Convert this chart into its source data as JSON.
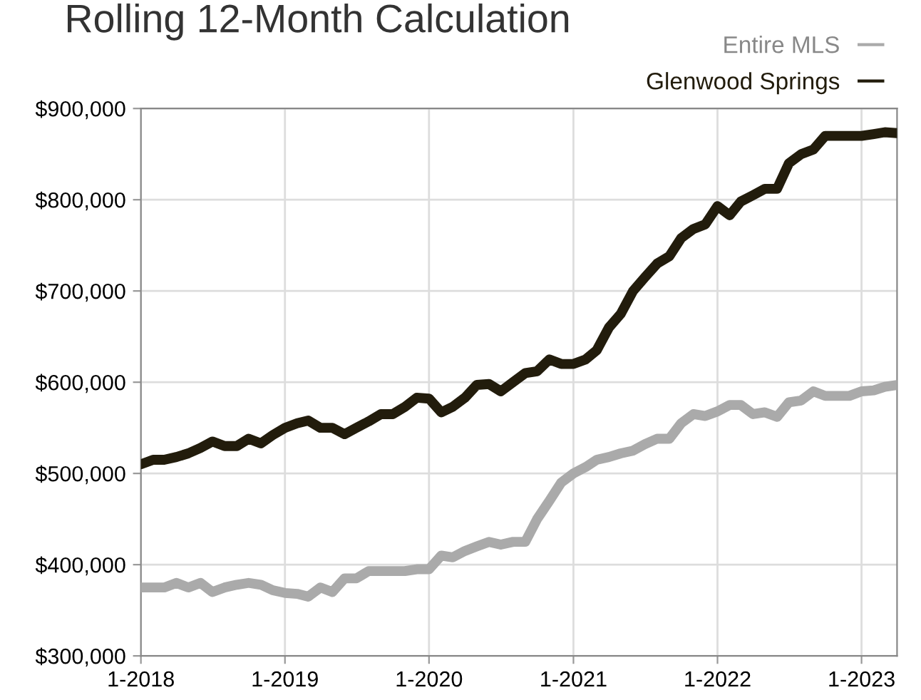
{
  "chart_data": {
    "type": "line",
    "title": "Rolling 12-Month Calculation",
    "x": [
      "2018-01",
      "2018-02",
      "2018-03",
      "2018-04",
      "2018-05",
      "2018-06",
      "2018-07",
      "2018-08",
      "2018-09",
      "2018-10",
      "2018-11",
      "2018-12",
      "2019-01",
      "2019-02",
      "2019-03",
      "2019-04",
      "2019-05",
      "2019-06",
      "2019-07",
      "2019-08",
      "2019-09",
      "2019-10",
      "2019-11",
      "2019-12",
      "2020-01",
      "2020-02",
      "2020-03",
      "2020-04",
      "2020-05",
      "2020-06",
      "2020-07",
      "2020-08",
      "2020-09",
      "2020-10",
      "2020-11",
      "2020-12",
      "2021-01",
      "2021-02",
      "2021-03",
      "2021-04",
      "2021-05",
      "2021-06",
      "2021-07",
      "2021-08",
      "2021-09",
      "2021-10",
      "2021-11",
      "2021-12",
      "2022-01",
      "2022-02",
      "2022-03",
      "2022-04",
      "2022-05",
      "2022-06",
      "2022-07",
      "2022-08",
      "2022-09",
      "2022-10",
      "2022-11",
      "2022-12",
      "2023-01",
      "2023-02",
      "2023-03",
      "2023-04"
    ],
    "series": [
      {
        "name": "Entire MLS",
        "color": "#aaaaaa",
        "values": [
          375000,
          375000,
          375000,
          380000,
          375000,
          380000,
          370000,
          375000,
          378000,
          380000,
          378000,
          372000,
          369000,
          368000,
          365000,
          375000,
          370000,
          385000,
          385000,
          393000,
          393000,
          393000,
          393000,
          395000,
          395000,
          410000,
          408000,
          415000,
          420000,
          425000,
          422000,
          425000,
          425000,
          450000,
          470000,
          490000,
          500000,
          507000,
          515000,
          518000,
          522000,
          525000,
          532000,
          538000,
          538000,
          555000,
          565000,
          563000,
          568000,
          575000,
          575000,
          565000,
          567000,
          562000,
          578000,
          580000,
          590000,
          585000,
          585000,
          585000,
          590000,
          591000,
          595000,
          597000
        ]
      },
      {
        "name": "Glenwood Springs",
        "color": "#221c0c",
        "values": [
          510000,
          515000,
          515000,
          518000,
          522000,
          528000,
          535000,
          530000,
          530000,
          538000,
          533000,
          542000,
          550000,
          555000,
          558000,
          550000,
          550000,
          543000,
          550000,
          557000,
          565000,
          565000,
          573000,
          583000,
          582000,
          567000,
          573000,
          583000,
          597000,
          598000,
          590000,
          600000,
          610000,
          612000,
          625000,
          620000,
          620000,
          625000,
          635000,
          660000,
          675000,
          700000,
          715000,
          730000,
          738000,
          758000,
          768000,
          773000,
          793000,
          783000,
          798000,
          805000,
          812000,
          812000,
          840000,
          850000,
          855000,
          870000,
          870000,
          870000,
          870000,
          872000,
          874000,
          873000
        ]
      }
    ],
    "xlim": [
      "2018-01",
      "2023-04"
    ],
    "xticks": [
      {
        "value": "2018-01",
        "label": "1-2018"
      },
      {
        "value": "2019-01",
        "label": "1-2019"
      },
      {
        "value": "2020-01",
        "label": "1-2020"
      },
      {
        "value": "2021-01",
        "label": "1-2021"
      },
      {
        "value": "2022-01",
        "label": "1-2022"
      },
      {
        "value": "2023-01",
        "label": "1-2023"
      }
    ],
    "ylim": [
      300000,
      900000
    ],
    "yticks": [
      {
        "value": 300000,
        "label": "$300,000"
      },
      {
        "value": 400000,
        "label": "$400,000"
      },
      {
        "value": 500000,
        "label": "$500,000"
      },
      {
        "value": 600000,
        "label": "$600,000"
      },
      {
        "value": 700000,
        "label": "$700,000"
      },
      {
        "value": 800000,
        "label": "$800,000"
      },
      {
        "value": 900000,
        "label": "$900,000"
      }
    ],
    "grid": true,
    "legend": "top right",
    "marker": "none",
    "line_style": "solid"
  }
}
